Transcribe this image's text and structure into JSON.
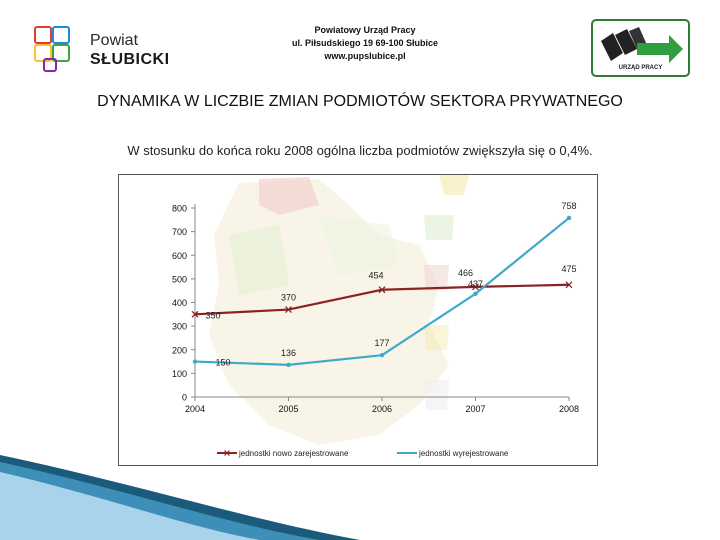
{
  "header": {
    "logo_left": {
      "line1": "Powiat",
      "line2": "SŁUBICKI",
      "icon": "four-squares-logo-icon"
    },
    "office_name": "Powiatowy Urząd Pracy",
    "address": "ul. Piłsudskiego 19  69-100 Słubice",
    "website": "www.pupslubice.pl",
    "logo_right": {
      "label": "URZĄD PRACY",
      "icon": "arrow-logo-icon"
    }
  },
  "title": "DYNAMIKA W LICZBIE ZMIAN PODMIOTÓW SEKTORA PRYWATNEGO",
  "subtitle": "W stosunku do końca roku 2008 ogólna liczba podmiotów zwiększyła się o 0,4%.",
  "colors": {
    "series1": "#8b2323",
    "series2": "#3fa9c9",
    "accent": "#2e7d32"
  },
  "chart_data": {
    "type": "line",
    "x": [
      "2004",
      "2005",
      "2006",
      "2007",
      "2008"
    ],
    "ylim": [
      0,
      800
    ],
    "yticks": [
      "0",
      "100",
      "200",
      "300",
      "400",
      "500",
      "600",
      "700",
      "800"
    ],
    "grid": false,
    "legend_position": "bottom",
    "series": [
      {
        "name": "jednostki nowo zarejestrowane",
        "values": [
          350,
          370,
          454,
          466,
          475
        ],
        "labels": [
          "350",
          "370",
          "454",
          "466",
          "475"
        ]
      },
      {
        "name": "jednostki wyrejestrowane",
        "values": [
          150,
          136,
          177,
          437,
          758
        ],
        "labels": [
          "150",
          "136",
          "177",
          "437",
          "758"
        ]
      }
    ]
  }
}
